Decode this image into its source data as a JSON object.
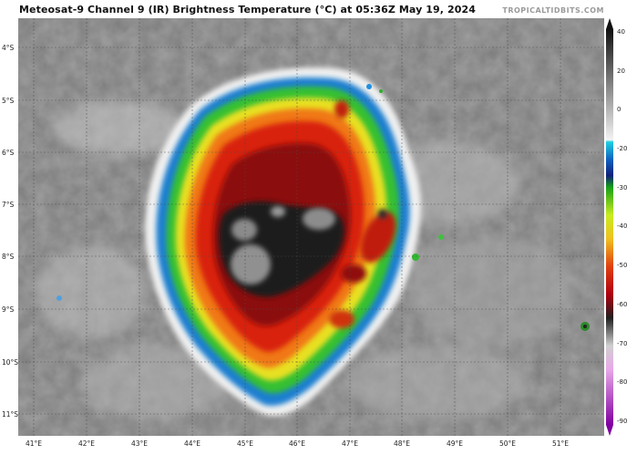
{
  "header": {
    "title": "Meteosat-9 Channel 9 (IR) Brightness Temperature (°C) at 05:36Z May 19, 2024",
    "credit": "TROPICALTIDBITS.COM"
  },
  "map": {
    "lat_labels": [
      "4°S",
      "5°S",
      "6°S",
      "7°S",
      "8°S",
      "9°S",
      "10°S",
      "11°S"
    ],
    "lon_labels": [
      "41°E",
      "42°E",
      "43°E",
      "44°E",
      "45°E",
      "46°E",
      "47°E",
      "48°E",
      "49°E",
      "50°E",
      "51°E"
    ]
  },
  "colorbar": {
    "labels": [
      "40",
      "20",
      "0",
      "-20",
      "-30",
      "-40",
      "-50",
      "-60",
      "-70",
      "-80",
      "-90"
    ]
  }
}
